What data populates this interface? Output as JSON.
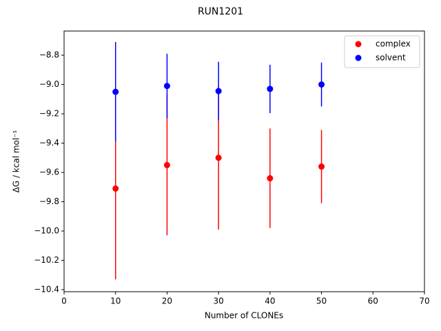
{
  "chart_data": {
    "type": "errorbar-scatter",
    "title": "RUN1201",
    "x_label": "Number of CLONEs",
    "y_label": "ΔG / kcal mol⁻¹",
    "x": [
      10,
      20,
      30,
      40,
      50
    ],
    "series": [
      {
        "name": "complex",
        "color": "#ff0000",
        "values": [
          -9.71,
          -9.55,
          -9.5,
          -9.64,
          -9.56
        ],
        "errors": [
          0.62,
          0.48,
          0.49,
          0.34,
          0.25
        ]
      },
      {
        "name": "solvent",
        "color": "#0000ff",
        "values": [
          -9.05,
          -9.01,
          -9.045,
          -9.03,
          -9.0
        ],
        "errors": [
          0.34,
          0.22,
          0.2,
          0.165,
          0.15
        ]
      }
    ],
    "xlim": [
      0,
      70
    ],
    "xticks": [
      0,
      10,
      20,
      30,
      40,
      50,
      60,
      70
    ],
    "ylim": [
      -10.414,
      -8.635
    ],
    "yticks": [
      {
        "value": -10.4,
        "label": "−10.4"
      },
      {
        "value": -10.2,
        "label": "−10.2"
      },
      {
        "value": -10.0,
        "label": "−10.0"
      },
      {
        "value": -9.8,
        "label": "−9.8"
      },
      {
        "value": -9.6,
        "label": "−9.6"
      },
      {
        "value": -9.4,
        "label": "−9.4"
      },
      {
        "value": -9.2,
        "label": "−9.2"
      },
      {
        "value": -9.0,
        "label": "−9.0"
      },
      {
        "value": -8.8,
        "label": "−8.8"
      }
    ],
    "legend": "upper right",
    "grid": false
  }
}
